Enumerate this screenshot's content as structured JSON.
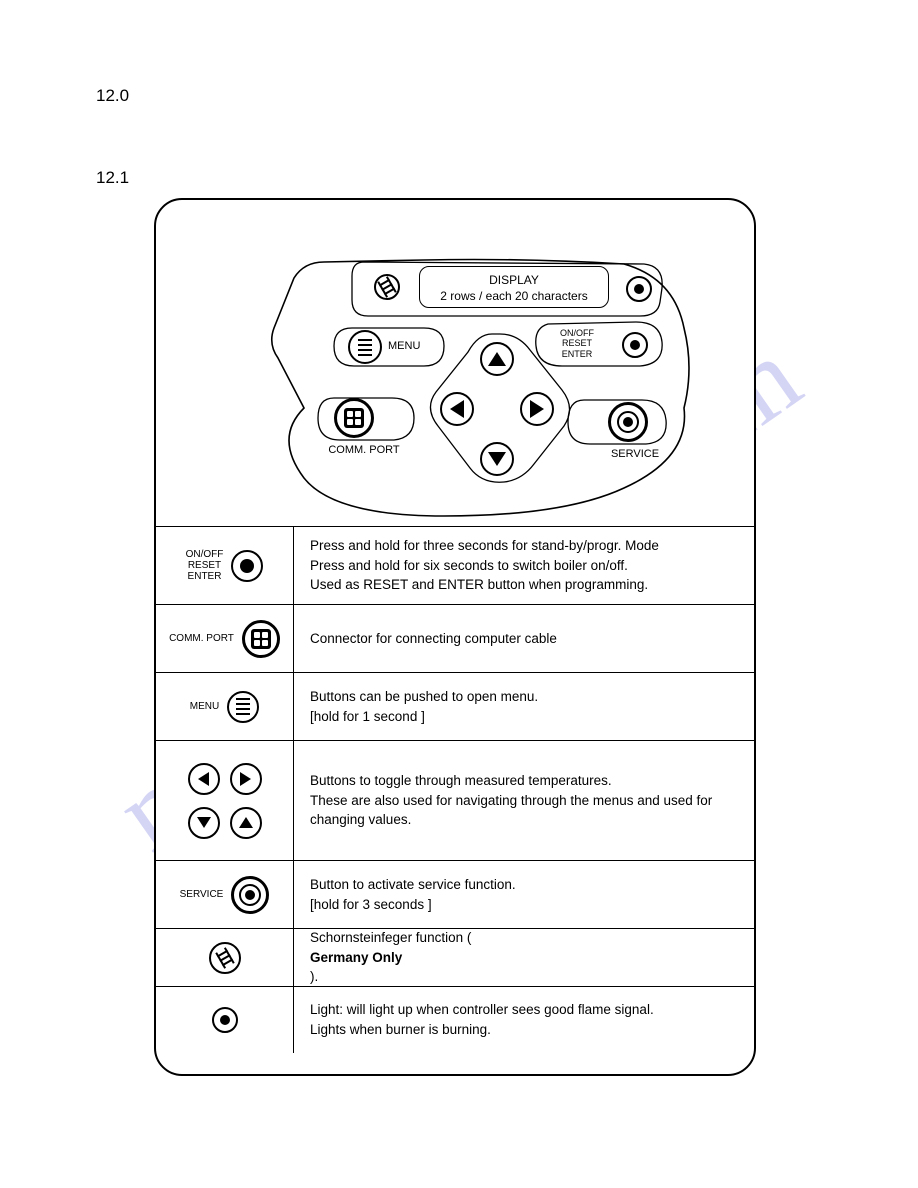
{
  "sections": {
    "main": "12.0",
    "sub": "12.1"
  },
  "watermark": "manualshive.com",
  "display": {
    "line1": "DISPLAY",
    "line2": "2 rows / each 20 characters"
  },
  "panel_labels": {
    "menu": "MENU",
    "onoff": "ON/OFF\nRESET\nENTER",
    "comm": "COMM. PORT",
    "service": "SERVICE"
  },
  "rows": [
    {
      "icon": "onoff",
      "label": "ON/OFF\nRESET\nENTER",
      "desc": "Press and hold for three seconds for stand-by/progr. Mode\nPress and hold for six seconds to switch boiler on/off.\nUsed as RESET and ENTER button when programming."
    },
    {
      "icon": "comm",
      "label": "COMM. PORT",
      "desc": "Connector for connecting computer cable"
    },
    {
      "icon": "menu",
      "label": "MENU",
      "desc": "Buttons can be pushed to open menu.\n[hold for 1 second ]"
    },
    {
      "icon": "arrows",
      "label": "",
      "desc": "Buttons to toggle through measured temperatures.\nThese are also used for navigating through the menus and used for changing values."
    },
    {
      "icon": "service",
      "label": "SERVICE",
      "desc": "Button to activate service function.\n[hold for 3 seconds ]"
    },
    {
      "icon": "ladder",
      "label": "",
      "desc_html": "Schornsteinfeger function (<b>Germany Only</b>)."
    },
    {
      "icon": "light",
      "label": "",
      "desc": "Light: will light up when controller sees good flame signal.\nLights when burner is burning."
    }
  ]
}
